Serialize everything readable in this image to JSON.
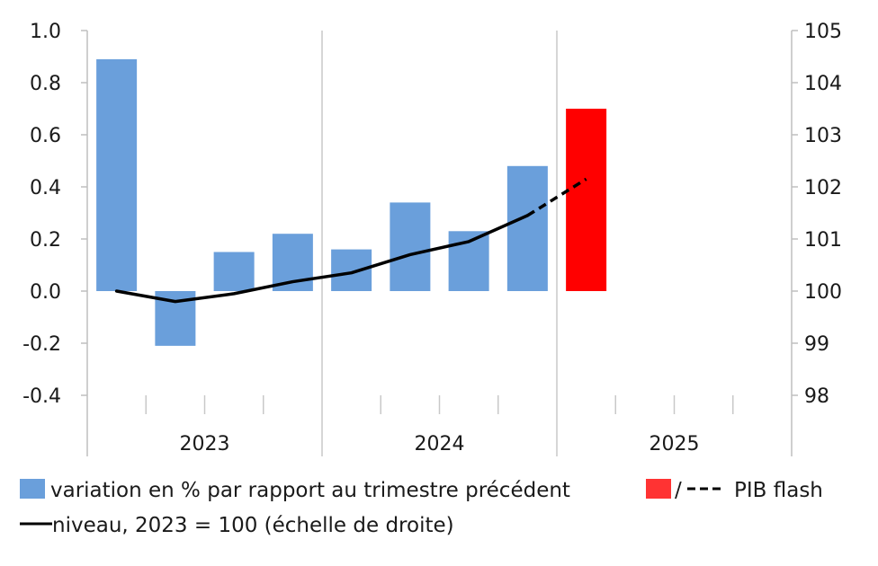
{
  "chart_data": {
    "type": "bar",
    "categories": [
      "2023 T1",
      "2023 T2",
      "2023 T3",
      "2023 T4",
      "2024 T1",
      "2024 T2",
      "2024 T3",
      "2024 T4",
      "2025 T1",
      "2025 T2",
      "2025 T3",
      "2025 T4"
    ],
    "x_tick_labels": [
      "2023",
      "2024",
      "2025"
    ],
    "left_axis": {
      "ylim": [
        -0.4,
        1.0
      ],
      "ticks": [
        "-0.4",
        "-0.2",
        "0.0",
        "0.2",
        "0.4",
        "0.6",
        "0.8",
        "1.0"
      ]
    },
    "right_axis": {
      "ylim": [
        98,
        105
      ],
      "ticks": [
        "98",
        "99",
        "100",
        "101",
        "102",
        "103",
        "104",
        "105"
      ]
    },
    "grid": "vertical-years-only",
    "series": [
      {
        "name": "variation en % par rapport au trimestre précédent",
        "kind": "bar",
        "axis": "left",
        "color": "#6a9fdb",
        "values": [
          0.89,
          -0.21,
          0.15,
          0.22,
          0.16,
          0.34,
          0.23,
          0.48,
          null,
          null,
          null,
          null
        ]
      },
      {
        "name": "PIB flash",
        "kind": "bar",
        "axis": "left",
        "color": "#ff0000",
        "values": [
          null,
          null,
          null,
          null,
          null,
          null,
          null,
          null,
          0.7,
          null,
          null,
          null
        ]
      },
      {
        "name": "niveau, 2023 = 100 (échelle de droite)",
        "kind": "line",
        "axis": "right",
        "color": "#000000",
        "values": [
          100.0,
          99.8,
          99.95,
          100.18,
          100.35,
          100.7,
          100.95,
          101.45,
          null,
          null,
          null,
          null
        ]
      },
      {
        "name": "PIB flash",
        "kind": "line-dashed",
        "axis": "right",
        "color": "#000000",
        "values": [
          null,
          null,
          null,
          null,
          null,
          null,
          null,
          101.45,
          102.15,
          null,
          null,
          null
        ]
      }
    ],
    "legend": {
      "placement": "bottom",
      "items": [
        {
          "symbol": "bar",
          "color": "#6a9fdb",
          "label": "variation en % par rapport au trimestre précédent"
        },
        {
          "symbol": "bar+dash",
          "color": "#ff3333",
          "separator": "/",
          "label": "PIB flash"
        },
        {
          "symbol": "line",
          "color": "#000000",
          "label": "niveau, 2023 = 100 (échelle de droite)"
        }
      ]
    }
  }
}
